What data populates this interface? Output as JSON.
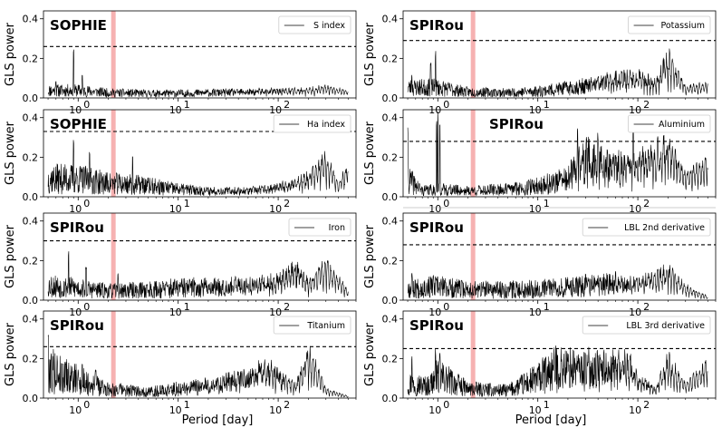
{
  "chart_data": {
    "type": "line",
    "xscale": "log",
    "xlabel": "Period [day]",
    "ylabel": "GLS power",
    "xlim": [
      0.45,
      600
    ],
    "ylim": [
      0,
      0.44
    ],
    "yticks": [
      0.0,
      0.2,
      0.4
    ],
    "ytick_labels": [
      "0.0",
      "0.2",
      "0.4"
    ],
    "xticks": [
      1,
      10,
      100
    ],
    "xtick_bases": [
      "10",
      "10",
      "10"
    ],
    "xtick_exps": [
      "0",
      "1",
      "2"
    ],
    "highlight_period": 2.25,
    "highlight_color": "#f4a3a3",
    "line_color": "#000000",
    "threshold_style": "dashed",
    "panels": [
      {
        "instrument": "SOPHIE",
        "legend": "S index",
        "threshold": 0.26,
        "inst_pos": "left",
        "seed": 11,
        "profile": [
          [
            0.5,
            0.05
          ],
          [
            1,
            0.05
          ],
          [
            2,
            0.035
          ],
          [
            5,
            0.03
          ],
          [
            10,
            0.03
          ],
          [
            20,
            0.035
          ],
          [
            50,
            0.04
          ],
          [
            100,
            0.045
          ],
          [
            200,
            0.05
          ],
          [
            300,
            0.065
          ],
          [
            500,
            0.04
          ]
        ],
        "spikes": [
          [
            0.9,
            0.27
          ],
          [
            1.1,
            0.12
          ],
          [
            0.6,
            0.09
          ]
        ]
      },
      {
        "instrument": "SPIRou",
        "legend": "Potassium",
        "threshold": 0.29,
        "inst_pos": "left",
        "seed": 23,
        "profile": [
          [
            0.5,
            0.07
          ],
          [
            1,
            0.07
          ],
          [
            2,
            0.04
          ],
          [
            5,
            0.035
          ],
          [
            10,
            0.045
          ],
          [
            30,
            0.08
          ],
          [
            60,
            0.12
          ],
          [
            100,
            0.13
          ],
          [
            150,
            0.09
          ],
          [
            200,
            0.24
          ],
          [
            300,
            0.06
          ],
          [
            500,
            0.08
          ]
        ],
        "spikes": [
          [
            0.95,
            0.24
          ],
          [
            0.85,
            0.18
          ],
          [
            0.55,
            0.12
          ]
        ]
      },
      {
        "instrument": "SOPHIE",
        "legend": "Ha index",
        "threshold": 0.33,
        "inst_pos": "left",
        "seed": 37,
        "profile": [
          [
            0.5,
            0.12
          ],
          [
            1,
            0.12
          ],
          [
            2,
            0.09
          ],
          [
            4,
            0.08
          ],
          [
            10,
            0.05
          ],
          [
            20,
            0.04
          ],
          [
            50,
            0.04
          ],
          [
            100,
            0.06
          ],
          [
            200,
            0.12
          ],
          [
            300,
            0.22
          ],
          [
            400,
            0.08
          ],
          [
            500,
            0.17
          ]
        ],
        "spikes": [
          [
            0.9,
            0.29
          ],
          [
            1.3,
            0.25
          ],
          [
            3.5,
            0.21
          ]
        ]
      },
      {
        "instrument": "SPIRou",
        "legend": "Aluminium",
        "threshold": 0.28,
        "inst_pos": "mid",
        "seed": 41,
        "profile": [
          [
            0.5,
            0.12
          ],
          [
            0.7,
            0.04
          ],
          [
            1,
            0.05
          ],
          [
            2,
            0.04
          ],
          [
            5,
            0.05
          ],
          [
            10,
            0.07
          ],
          [
            20,
            0.12
          ],
          [
            30,
            0.25
          ],
          [
            50,
            0.2
          ],
          [
            100,
            0.2
          ],
          [
            200,
            0.31
          ],
          [
            300,
            0.12
          ],
          [
            500,
            0.21
          ]
        ],
        "spikes": [
          [
            0.5,
            0.35
          ],
          [
            1.0,
            0.44
          ],
          [
            0.97,
            0.4
          ],
          [
            1.05,
            0.38
          ],
          [
            25,
            0.38
          ],
          [
            40,
            0.33
          ],
          [
            90,
            0.39
          ]
        ]
      },
      {
        "instrument": "SPIRou",
        "legend": "Iron",
        "threshold": 0.3,
        "inst_pos": "left",
        "seed": 53,
        "profile": [
          [
            0.5,
            0.1
          ],
          [
            1,
            0.08
          ],
          [
            2,
            0.06
          ],
          [
            5,
            0.07
          ],
          [
            10,
            0.08
          ],
          [
            20,
            0.09
          ],
          [
            50,
            0.1
          ],
          [
            100,
            0.12
          ],
          [
            150,
            0.2
          ],
          [
            200,
            0.1
          ],
          [
            300,
            0.21
          ],
          [
            500,
            0.05
          ]
        ],
        "spikes": [
          [
            0.8,
            0.26
          ],
          [
            1.2,
            0.17
          ],
          [
            2.5,
            0.14
          ]
        ]
      },
      {
        "instrument": "SPIRou",
        "legend": "LBL 2nd derivative",
        "threshold": 0.28,
        "inst_pos": "left",
        "seed": 67,
        "profile": [
          [
            0.5,
            0.08
          ],
          [
            1,
            0.09
          ],
          [
            2,
            0.07
          ],
          [
            5,
            0.07
          ],
          [
            10,
            0.08
          ],
          [
            20,
            0.09
          ],
          [
            50,
            0.11
          ],
          [
            100,
            0.1
          ],
          [
            200,
            0.17
          ],
          [
            300,
            0.08
          ],
          [
            500,
            0.02
          ]
        ],
        "spikes": [
          [
            0.55,
            0.14
          ],
          [
            0.9,
            0.13
          ],
          [
            30,
            0.15
          ],
          [
            60,
            0.16
          ]
        ]
      },
      {
        "instrument": "SPIRou",
        "legend": "Titanium",
        "threshold": 0.26,
        "inst_pos": "left",
        "seed": 79,
        "profile": [
          [
            0.5,
            0.2
          ],
          [
            0.7,
            0.15
          ],
          [
            1,
            0.12
          ],
          [
            2,
            0.06
          ],
          [
            5,
            0.04
          ],
          [
            10,
            0.06
          ],
          [
            20,
            0.08
          ],
          [
            50,
            0.13
          ],
          [
            80,
            0.19
          ],
          [
            100,
            0.13
          ],
          [
            150,
            0.07
          ],
          [
            200,
            0.28
          ],
          [
            300,
            0.05
          ],
          [
            500,
            0.01
          ]
        ],
        "spikes": [
          [
            0.5,
            0.34
          ],
          [
            0.75,
            0.2
          ],
          [
            1.1,
            0.18
          ],
          [
            1.5,
            0.16
          ]
        ]
      },
      {
        "instrument": "SPIRou",
        "legend": "LBL 3rd derivative",
        "threshold": 0.25,
        "inst_pos": "left",
        "seed": 97,
        "profile": [
          [
            0.5,
            0.1
          ],
          [
            0.8,
            0.08
          ],
          [
            1,
            0.15
          ],
          [
            2,
            0.06
          ],
          [
            5,
            0.05
          ],
          [
            10,
            0.13
          ],
          [
            15,
            0.2
          ],
          [
            30,
            0.2
          ],
          [
            50,
            0.2
          ],
          [
            80,
            0.22
          ],
          [
            100,
            0.12
          ],
          [
            150,
            0.05
          ],
          [
            200,
            0.22
          ],
          [
            300,
            0.08
          ],
          [
            500,
            0.19
          ]
        ],
        "spikes": [
          [
            0.55,
            0.22
          ],
          [
            0.95,
            0.25
          ],
          [
            1.05,
            0.23
          ],
          [
            12,
            0.21
          ]
        ]
      }
    ]
  }
}
